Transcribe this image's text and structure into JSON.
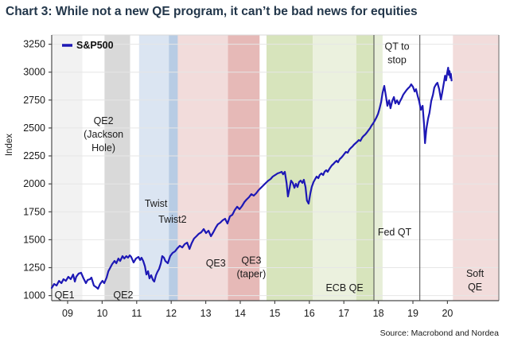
{
  "title": "Chart 3: While not a new QE program, it can’t be bad news for equities",
  "source": "Source: Macrobond and Nordea",
  "legend": {
    "items": [
      {
        "label": "S&P500",
        "color": "#1d18b5"
      }
    ]
  },
  "colors": {
    "line": "#1d18b5",
    "grid": "#e6e6e6",
    "axis": "#4a4a4a",
    "frame_light": "#d9d9d9",
    "event_line": "#4a4a4a",
    "tick_text": "#1a1a1a",
    "annotation_text": "#1a1a1a",
    "title_text": "#22364a"
  },
  "chart_data": {
    "type": "line",
    "title": "Chart 3: While not a new QE program, it can’t be bad news for equities",
    "xlabel": "",
    "ylabel": "Index",
    "x_axis": {
      "tick_labels": [
        "09",
        "10",
        "11",
        "12",
        "13",
        "14",
        "15",
        "16",
        "17",
        "18",
        "19",
        "20"
      ],
      "tick_years": [
        9,
        10,
        11,
        12,
        13,
        14,
        15,
        16,
        17,
        18,
        19,
        20
      ],
      "range": [
        8.54,
        21.49
      ]
    },
    "y_axis": {
      "label": "Index",
      "ticks": [
        1000,
        1250,
        1500,
        1750,
        2000,
        2250,
        2500,
        2750,
        3000,
        3250
      ],
      "range": [
        954,
        3340
      ]
    },
    "grid": true,
    "legend_position": "top-left",
    "bands": [
      {
        "name": "qe1-band",
        "from": 8.57,
        "to": 9.43,
        "color": "#f2f2f2"
      },
      {
        "name": "qe2-band",
        "from": 10.07,
        "to": 10.81,
        "color": "#d9d9d9"
      },
      {
        "name": "twist-band",
        "from": 11.07,
        "to": 11.93,
        "color": "#dbe5f2"
      },
      {
        "name": "twist2-band",
        "from": 11.93,
        "to": 12.19,
        "color": "#b8cce4"
      },
      {
        "name": "qe3-band",
        "from": 12.19,
        "to": 13.64,
        "color": "#f2dcdb"
      },
      {
        "name": "qe3-taper-band",
        "from": 13.64,
        "to": 14.56,
        "color": "#e6b9b7"
      },
      {
        "name": "ecb-qe-band-1",
        "from": 14.76,
        "to": 16.1,
        "color": "#d7e4bc"
      },
      {
        "name": "ecb-qe-band-2",
        "from": 16.1,
        "to": 17.36,
        "color": "#ebf1de"
      },
      {
        "name": "ecb-qe-band-3",
        "from": 17.36,
        "to": 17.87,
        "color": "#d7e4bc"
      },
      {
        "name": "ecb-qe-band-4",
        "from": 17.87,
        "to": 18.12,
        "color": "#e7eed8"
      },
      {
        "name": "soft-qe-band",
        "from": 20.16,
        "to": 21.49,
        "color": "#f2dcdb"
      }
    ],
    "event_lines": [
      {
        "name": "fed-qt-line",
        "year": 17.87
      },
      {
        "name": "qt-stop-line",
        "year": 19.2
      }
    ],
    "annotations": [
      {
        "name": "qe1-label",
        "lines": [
          "QE1"
        ],
        "year": 8.91,
        "value": 1004
      },
      {
        "name": "qe2-label",
        "lines": [
          "QE2"
        ],
        "year": 10.61,
        "value": 1004
      },
      {
        "name": "qe2-jackson-hole-label",
        "lines": [
          "QE2",
          "(Jackson",
          "Hole)"
        ],
        "year": 10.04,
        "value": 2443
      },
      {
        "name": "twist-label",
        "lines": [
          "Twist"
        ],
        "year": 11.56,
        "value": 1823
      },
      {
        "name": "twist2-label",
        "lines": [
          "Twist2"
        ],
        "year": 12.04,
        "value": 1681
      },
      {
        "name": "qe3-label",
        "lines": [
          "QE3"
        ],
        "year": 13.29,
        "value": 1289
      },
      {
        "name": "qe3-taper-label",
        "lines": [
          "QE3",
          "(taper)"
        ],
        "year": 14.32,
        "value": 1253
      },
      {
        "name": "ecb-qe-label",
        "lines": [
          "ECB QE"
        ],
        "year": 17.02,
        "value": 1068
      },
      {
        "name": "fed-qt-label",
        "lines": [
          "Fed QT"
        ],
        "year": 18.47,
        "value": 1567
      },
      {
        "name": "qt-to-stop-label",
        "lines": [
          "QT to",
          "stop"
        ],
        "year": 18.54,
        "value": 3169
      },
      {
        "name": "soft-qe-label",
        "lines": [
          "Soft",
          "QE"
        ],
        "year": 20.8,
        "value": 1136
      }
    ],
    "series": [
      {
        "name": "S&P500",
        "color": "#1d18b5",
        "points": [
          [
            8.54,
            1068
          ],
          [
            8.61,
            1104
          ],
          [
            8.68,
            1090
          ],
          [
            8.75,
            1132
          ],
          [
            8.82,
            1111
          ],
          [
            8.88,
            1147
          ],
          [
            8.95,
            1132
          ],
          [
            9.02,
            1168
          ],
          [
            9.09,
            1147
          ],
          [
            9.16,
            1189
          ],
          [
            9.21,
            1125
          ],
          [
            9.25,
            1168
          ],
          [
            9.32,
            1197
          ],
          [
            9.39,
            1204
          ],
          [
            9.46,
            1154
          ],
          [
            9.53,
            1111
          ],
          [
            9.58,
            1140
          ],
          [
            9.65,
            1147
          ],
          [
            9.69,
            1161
          ],
          [
            9.76,
            1090
          ],
          [
            9.83,
            1075
          ],
          [
            9.88,
            1061
          ],
          [
            9.94,
            1104
          ],
          [
            10.01,
            1132
          ],
          [
            10.06,
            1111
          ],
          [
            10.13,
            1161
          ],
          [
            10.18,
            1218
          ],
          [
            10.24,
            1253
          ],
          [
            10.29,
            1282
          ],
          [
            10.36,
            1310
          ],
          [
            10.41,
            1289
          ],
          [
            10.47,
            1332
          ],
          [
            10.52,
            1310
          ],
          [
            10.59,
            1353
          ],
          [
            10.64,
            1332
          ],
          [
            10.7,
            1353
          ],
          [
            10.75,
            1339
          ],
          [
            10.8,
            1360
          ],
          [
            10.84,
            1346
          ],
          [
            10.91,
            1296
          ],
          [
            10.98,
            1332
          ],
          [
            11.05,
            1346
          ],
          [
            11.1,
            1318
          ],
          [
            11.14,
            1339
          ],
          [
            11.19,
            1310
          ],
          [
            11.24,
            1261
          ],
          [
            11.28,
            1189
          ],
          [
            11.33,
            1218
          ],
          [
            11.37,
            1154
          ],
          [
            11.42,
            1182
          ],
          [
            11.47,
            1140
          ],
          [
            11.51,
            1125
          ],
          [
            11.56,
            1182
          ],
          [
            11.6,
            1211
          ],
          [
            11.65,
            1239
          ],
          [
            11.7,
            1289
          ],
          [
            11.74,
            1353
          ],
          [
            11.79,
            1339
          ],
          [
            11.83,
            1310
          ],
          [
            11.9,
            1289
          ],
          [
            11.97,
            1353
          ],
          [
            12.04,
            1382
          ],
          [
            12.11,
            1396
          ],
          [
            12.18,
            1424
          ],
          [
            12.25,
            1446
          ],
          [
            12.32,
            1431
          ],
          [
            12.39,
            1460
          ],
          [
            12.46,
            1474
          ],
          [
            12.53,
            1417
          ],
          [
            12.59,
            1467
          ],
          [
            12.66,
            1510
          ],
          [
            12.73,
            1531
          ],
          [
            12.8,
            1553
          ],
          [
            12.87,
            1567
          ],
          [
            12.94,
            1595
          ],
          [
            13.01,
            1560
          ],
          [
            13.08,
            1581
          ],
          [
            13.15,
            1531
          ],
          [
            13.22,
            1567
          ],
          [
            13.29,
            1609
          ],
          [
            13.35,
            1638
          ],
          [
            13.42,
            1652
          ],
          [
            13.49,
            1674
          ],
          [
            13.56,
            1688
          ],
          [
            13.63,
            1645
          ],
          [
            13.7,
            1709
          ],
          [
            13.77,
            1723
          ],
          [
            13.84,
            1766
          ],
          [
            13.91,
            1795
          ],
          [
            13.98,
            1773
          ],
          [
            14.05,
            1802
          ],
          [
            14.12,
            1837
          ],
          [
            14.18,
            1859
          ],
          [
            14.25,
            1880
          ],
          [
            14.32,
            1908
          ],
          [
            14.39,
            1894
          ],
          [
            14.46,
            1916
          ],
          [
            14.53,
            1944
          ],
          [
            14.6,
            1965
          ],
          [
            14.67,
            1987
          ],
          [
            14.74,
            2008
          ],
          [
            14.81,
            2029
          ],
          [
            14.88,
            2044
          ],
          [
            14.94,
            2065
          ],
          [
            15.01,
            2079
          ],
          [
            15.08,
            2094
          ],
          [
            15.15,
            2101
          ],
          [
            15.2,
            2108
          ],
          [
            15.24,
            2086
          ],
          [
            15.29,
            2108
          ],
          [
            15.34,
            2008
          ],
          [
            15.38,
            1887
          ],
          [
            15.43,
            1965
          ],
          [
            15.47,
            2029
          ],
          [
            15.52,
            2008
          ],
          [
            15.57,
            1965
          ],
          [
            15.61,
            2001
          ],
          [
            15.66,
            1972
          ],
          [
            15.7,
            2015
          ],
          [
            15.75,
            2029
          ],
          [
            15.8,
            2008
          ],
          [
            15.84,
            2037
          ],
          [
            15.89,
            1972
          ],
          [
            15.93,
            1851
          ],
          [
            15.98,
            1823
          ],
          [
            16.03,
            1916
          ],
          [
            16.07,
            1972
          ],
          [
            16.12,
            2015
          ],
          [
            16.17,
            2044
          ],
          [
            16.21,
            2065
          ],
          [
            16.26,
            2051
          ],
          [
            16.3,
            2079
          ],
          [
            16.35,
            2094
          ],
          [
            16.4,
            2079
          ],
          [
            16.44,
            2108
          ],
          [
            16.49,
            2122
          ],
          [
            16.53,
            2108
          ],
          [
            16.6,
            2143
          ],
          [
            16.65,
            2165
          ],
          [
            16.7,
            2179
          ],
          [
            16.74,
            2193
          ],
          [
            16.79,
            2207
          ],
          [
            16.83,
            2193
          ],
          [
            16.88,
            2222
          ],
          [
            16.93,
            2236
          ],
          [
            16.97,
            2250
          ],
          [
            17.02,
            2271
          ],
          [
            17.06,
            2286
          ],
          [
            17.11,
            2279
          ],
          [
            17.16,
            2307
          ],
          [
            17.2,
            2321
          ],
          [
            17.25,
            2335
          ],
          [
            17.29,
            2350
          ],
          [
            17.34,
            2364
          ],
          [
            17.39,
            2378
          ],
          [
            17.43,
            2392
          ],
          [
            17.48,
            2385
          ],
          [
            17.53,
            2414
          ],
          [
            17.57,
            2428
          ],
          [
            17.62,
            2442
          ],
          [
            17.66,
            2457
          ],
          [
            17.71,
            2478
          ],
          [
            17.76,
            2499
          ],
          [
            17.8,
            2521
          ],
          [
            17.85,
            2542
          ],
          [
            17.89,
            2563
          ],
          [
            17.94,
            2592
          ],
          [
            17.99,
            2627
          ],
          [
            18.03,
            2670
          ],
          [
            18.08,
            2734
          ],
          [
            18.12,
            2813
          ],
          [
            18.17,
            2877
          ],
          [
            18.22,
            2784
          ],
          [
            18.26,
            2699
          ],
          [
            18.31,
            2748
          ],
          [
            18.35,
            2677
          ],
          [
            18.4,
            2741
          ],
          [
            18.45,
            2777
          ],
          [
            18.49,
            2720
          ],
          [
            18.54,
            2748
          ],
          [
            18.59,
            2713
          ],
          [
            18.63,
            2741
          ],
          [
            18.68,
            2770
          ],
          [
            18.72,
            2798
          ],
          [
            18.77,
            2820
          ],
          [
            18.82,
            2841
          ],
          [
            18.86,
            2855
          ],
          [
            18.91,
            2870
          ],
          [
            18.95,
            2891
          ],
          [
            19.0,
            2870
          ],
          [
            19.05,
            2827
          ],
          [
            19.09,
            2848
          ],
          [
            19.14,
            2784
          ],
          [
            19.18,
            2741
          ],
          [
            19.23,
            2663
          ],
          [
            19.28,
            2699
          ],
          [
            19.32,
            2542
          ],
          [
            19.35,
            2364
          ],
          [
            19.39,
            2492
          ],
          [
            19.44,
            2585
          ],
          [
            19.48,
            2635
          ],
          [
            19.53,
            2741
          ],
          [
            19.58,
            2798
          ],
          [
            19.62,
            2863
          ],
          [
            19.67,
            2891
          ],
          [
            19.71,
            2905
          ],
          [
            19.76,
            2848
          ],
          [
            19.81,
            2756
          ],
          [
            19.85,
            2820
          ],
          [
            19.9,
            2912
          ],
          [
            19.93,
            2968
          ],
          [
            19.96,
            2926
          ],
          [
            19.99,
            2990
          ],
          [
            20.02,
            3040
          ],
          [
            20.04,
            2975
          ],
          [
            20.06,
            3010
          ],
          [
            20.08,
            2950
          ],
          [
            20.1,
            2985
          ],
          [
            20.12,
            2925
          ]
        ]
      }
    ]
  }
}
